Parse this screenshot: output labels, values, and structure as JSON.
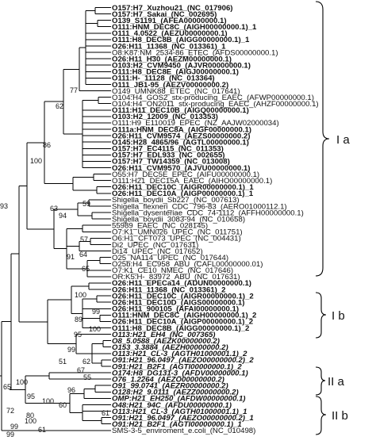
{
  "leaves": [
    {
      "text": "O157:H7_Xuzhou21_(NC_017906)",
      "bold": true
    },
    {
      "text": "O157:H7_Sakai_(NC_002695)",
      "bold": true
    },
    {
      "text": "O139_S1191_(AFEA00000000.1)",
      "bold": true
    },
    {
      "text": "O111:HNM_DEC8C_(AIGH00000000.1)_1",
      "bold": true
    },
    {
      "text": "O111_4.0522_(AEZU00000000.1)",
      "bold": true
    },
    {
      "text": "O111:H8_DEC8B_(AIGG00000000.1)_1",
      "bold": true
    },
    {
      "text": "O26:H11_11368_(NC_013361)_1",
      "bold": true
    },
    {
      "text": "O8:K87:NM_2534-86_ETEC_(AFDS00000000.1)",
      "bold": false
    },
    {
      "text": "O26:H11_H30_(AEZM00000000.1)",
      "bold": true
    },
    {
      "text": "O103:H2_CVM9450_(AJVR00000000.1)",
      "bold": true
    },
    {
      "text": "O111:H8_DEC8E_(AIGJ00000000.1)",
      "bold": true
    },
    {
      "text": "O111:H-_11128_(NC_013364)",
      "bold": true
    },
    {
      "text": "O111_JB1-95_(AEZV00000000.2)",
      "bold": true
    },
    {
      "text": "O149_UMNK88_ETEC_(NC_017641)",
      "bold": false
    },
    {
      "text": "O104:H4_GOS2_stx-producing_EAEC_(AFWP00000000.1)",
      "bold": false
    },
    {
      "text": "O104:H4_ON2011_stx-producing_EAEC_(AHZF00000000.1)",
      "bold": false
    },
    {
      "text": "O111:H11_DEC10B_(AIGQ00000000.1)",
      "bold": true
    },
    {
      "text": "O103:H2_12009_(NC_013353)",
      "bold": true
    },
    {
      "text": "O111:H9_E110019_EPEC_(NZ_AAJW02000034)",
      "bold": false
    },
    {
      "text": "O111a:HNM_DEC8A_(AIGF00000000.1)",
      "bold": true
    },
    {
      "text": "O26:H11_CVM9574_(AEZS00000000.2)",
      "bold": true
    },
    {
      "text": "O145:H28_4865/96_(AGTL00000000.1)",
      "bold": true
    },
    {
      "text": "O157:H7_EC4115_(NC_011353)",
      "bold": true
    },
    {
      "text": "O157:H7_EDL933_(NC_002655)",
      "bold": true
    },
    {
      "text": "O157:H7_TW14359_(NC_013008)",
      "bold": true
    },
    {
      "text": "O26:H11_CVM9570_(AJVU00000000.1)",
      "bold": true
    },
    {
      "text": "O55:H7_DEC5E_EPEC_(AIFU00000000.1)",
      "bold": false
    },
    {
      "text": "O111:H21_DEC15A_EAEC_(AIHO00000000.1)",
      "bold": false
    },
    {
      "text": "O26:H11_DEC10C_(AIGR00000000.1)_1",
      "bold": true
    },
    {
      "text": "O26:H11_DEC10A_(AIGP00000000.1)_1",
      "bold": true
    },
    {
      "text": "Shigella_boydii_Sb227_(NC_007613)",
      "bold": false
    },
    {
      "text": "Shigella_flexneri_CDC_796-83_(AERO01000112.1)",
      "bold": false
    },
    {
      "text": "Shigella_dysenteriae_CDC_74-1112_(AFFH00000000.1)",
      "bold": false
    },
    {
      "text": "Shigella_boydii_3083-94_(NC_010658)",
      "bold": false
    },
    {
      "text": "55989_EAEC_(NC_028145)",
      "bold": false
    },
    {
      "text": "O7:K1_UMN026_UPEC_(NC_011751)",
      "bold": false
    },
    {
      "text": "O6:H1_CFT073_UPEC_(NC_004431)",
      "bold": false
    },
    {
      "text": "Di2_UPEC_(NC_017631)",
      "bold": false
    },
    {
      "text": "Di14_UPEC_(NC_017652)",
      "bold": false
    },
    {
      "text": "O25_NA114_UPEC_(NC_017644)",
      "bold": false
    },
    {
      "text": "O25b:H4_EC958_ABU_(CAFL00000000.01)",
      "bold": false
    },
    {
      "text": "O7:K1_CE10_NMEC_(NC_017646)",
      "bold": false
    },
    {
      "text": "OR:K5:H-_83972_ABU_(NC_017631)",
      "bold": false
    },
    {
      "text": "O26:H11_EPECa14_(ADUN00000000.1)",
      "bold": true
    },
    {
      "text": "O26:H11_11368_(NC_013361)_2",
      "bold": true
    },
    {
      "text": "O26:H11_DEC10C_(AIGR00000000.1)_2",
      "bold": true
    },
    {
      "text": "O26:H11_DEC10D_(AIGS00000000.1)",
      "bold": true
    },
    {
      "text": "O26:H11_900105_(AFAI00000000.1)",
      "bold": true
    },
    {
      "text": "O111:HNM_DEC8C_(AIGH00000000.1)_2",
      "bold": true
    },
    {
      "text": "O26:H11_DEC10A_(AIGP00000000.1)_2",
      "bold": true
    },
    {
      "text": "O111:H8_DEC8B_(AIGG00000000.1)_2",
      "bold": true
    },
    {
      "text": "O113:H21_EH4_(NC_007365)",
      "bold": true,
      "italic": true
    },
    {
      "text": "O8_5.0588_(AEZK00000000.2)",
      "bold": true,
      "italic": true
    },
    {
      "text": "O153_3.3884_(AEZH00000000.2)",
      "bold": true,
      "italic": true
    },
    {
      "text": "O113:H21_CL-3_(AGTH01000001.1)_2",
      "bold": true,
      "italic": true
    },
    {
      "text": "O91:H21_96.0497_(AEZO00000000.2)_2",
      "bold": true,
      "italic": true
    },
    {
      "text": "O91:H21_B2F1_(AGTI00000000.1)_2",
      "bold": true,
      "italic": true
    },
    {
      "text": "O174:H8_DG131-3_(AFDV00000000.1)",
      "bold": true,
      "italic": true
    },
    {
      "text": "O76_1.2264_(AEZO00000000.2)",
      "bold": true,
      "italic": true
    },
    {
      "text": "O91_99.0741_(AEZR00000000.2)",
      "bold": true,
      "italic": true
    },
    {
      "text": "O128:H2_9.0111_(AEZZ00000000.2)",
      "bold": true,
      "italic": true
    },
    {
      "text": "OMP:H21_EH250_(AFDW00000000.1)",
      "bold": true,
      "italic": true
    },
    {
      "text": "O48:H21_94C_(AFDU00000000.1)",
      "bold": true,
      "italic": true
    },
    {
      "text": "O113:H21_CL-3_(AGTH01000001.1)_1",
      "bold": true,
      "italic": true
    },
    {
      "text": "O91:H21_96.0497_(AEZO00000000.2)_1",
      "bold": true,
      "italic": true
    },
    {
      "text": "O91:H21_B2F1_(AGTI00000000.1)_1",
      "bold": true,
      "italic": true
    },
    {
      "text": "SMS-3-5_enviroment_e.coli_(NC_010498)",
      "bold": false
    }
  ],
  "bootstrap": [
    "77",
    "62",
    "86",
    "63",
    "59",
    "94",
    "100",
    "57",
    "64",
    "91",
    "65",
    "93",
    "100",
    "89",
    "99",
    "95",
    "100",
    "51",
    "99",
    "62",
    "67",
    "100",
    "55",
    "96",
    "95",
    "61",
    "60",
    "61",
    "99",
    "72",
    "65",
    "100",
    "80",
    "100",
    "99"
  ],
  "groups": [
    "I a",
    "I b",
    "II a",
    "II b"
  ],
  "colors": {
    "line": "#000000",
    "text": "#111111",
    "background": "#ffffff"
  }
}
